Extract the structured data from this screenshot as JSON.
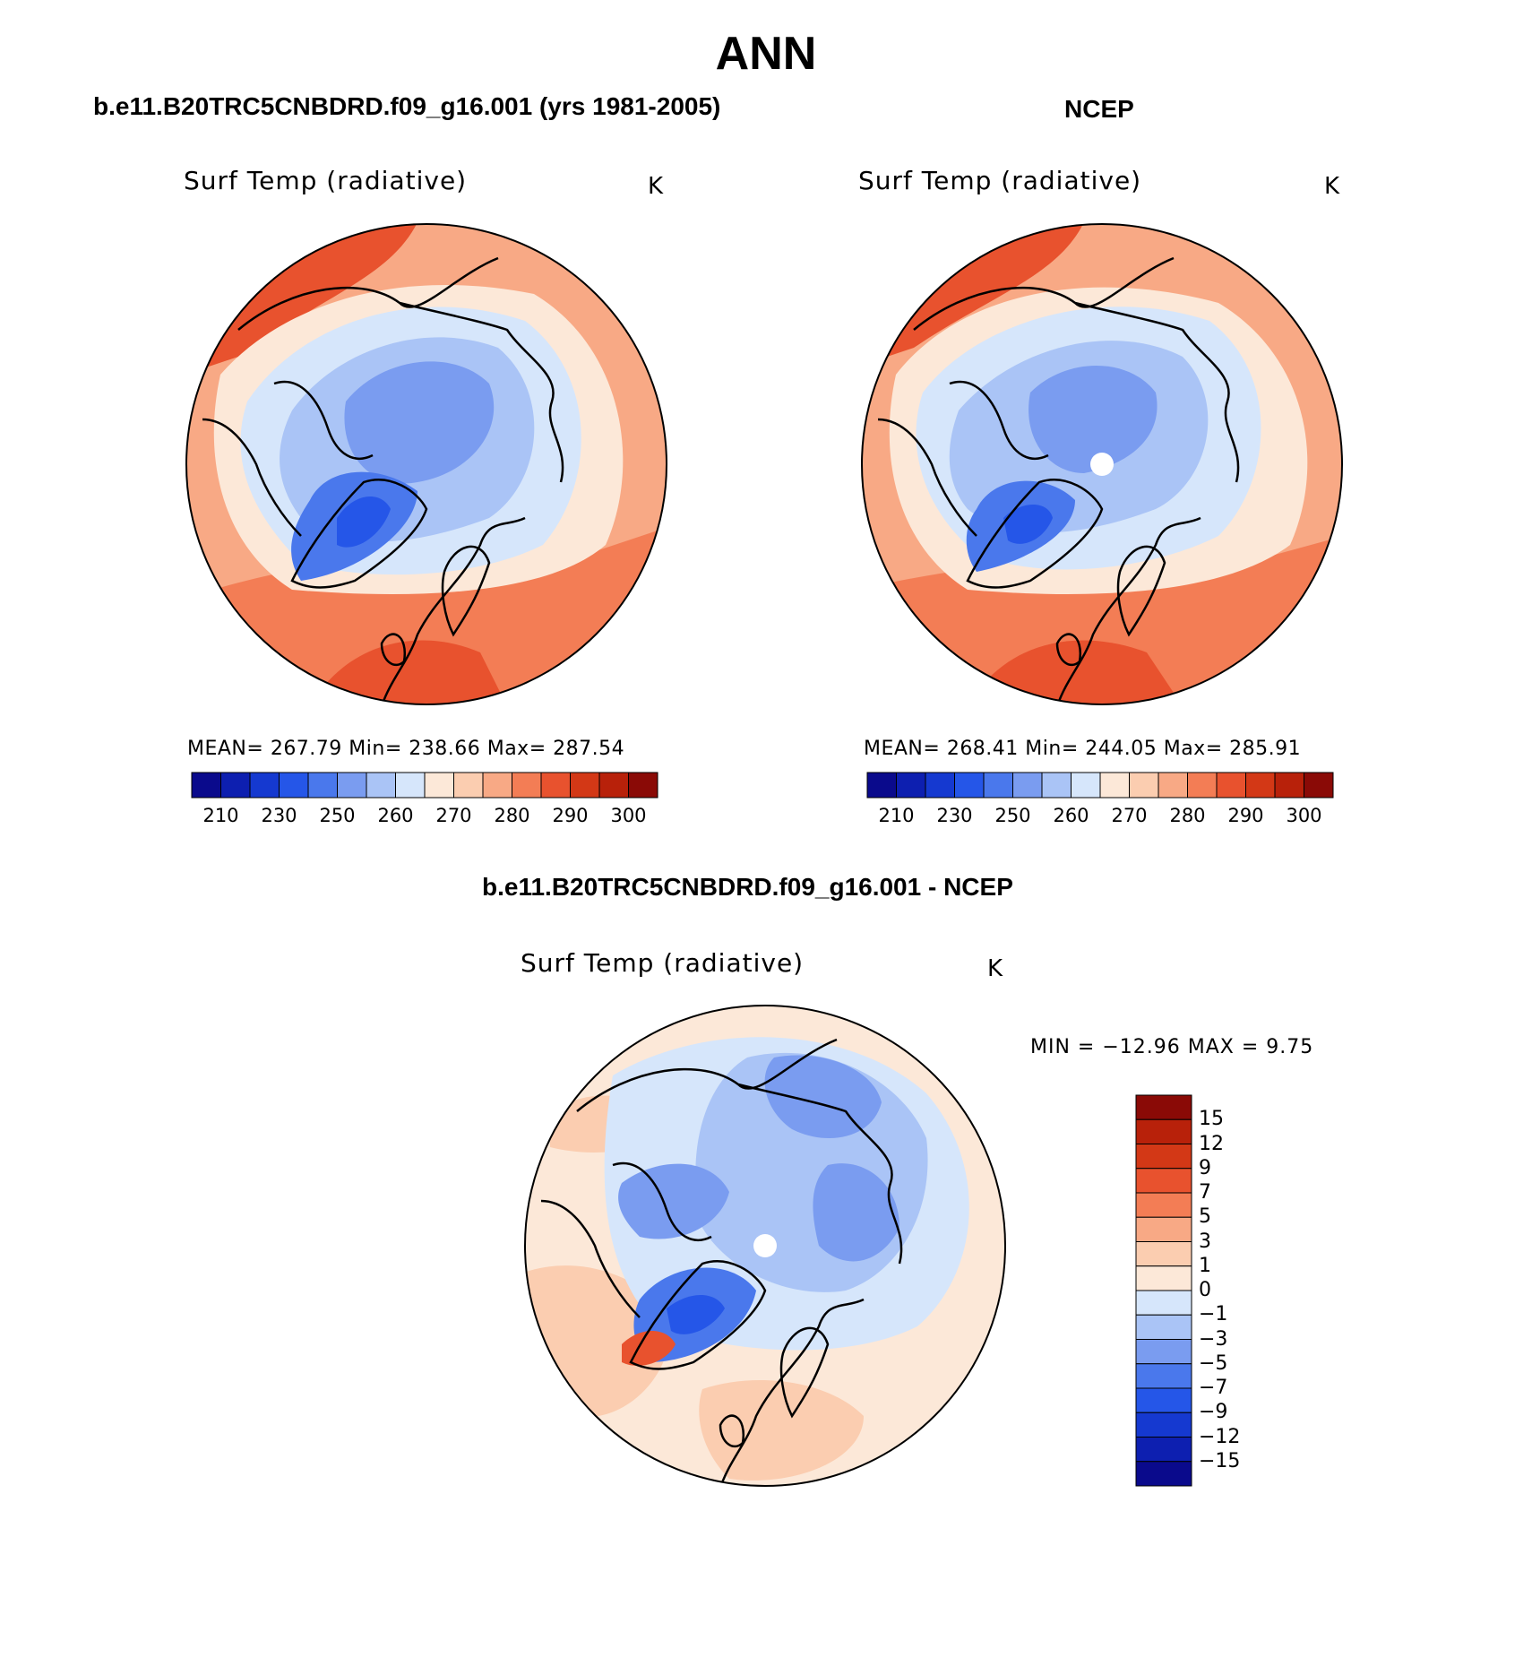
{
  "page_title": "ANN",
  "panels": [
    {
      "case_title": "b.e11.B20TRC5CNBDRD.f09_g16.001 (yrs 1981-2005)",
      "variable_label": "Surf Temp (radiative)",
      "unit": "K",
      "stats": {
        "mean": "267.79",
        "min": "238.66",
        "max": "287.54"
      },
      "stats_text": "MEAN= 267.79   Min= 238.66   Max= 287.54",
      "has_pole_hole": false
    },
    {
      "case_title": "NCEP",
      "variable_label": "Surf Temp (radiative)",
      "unit": "K",
      "stats": {
        "mean": "268.41",
        "min": "244.05",
        "max": "285.91"
      },
      "stats_text": "MEAN= 268.41   Min= 244.05   Max= 285.91",
      "has_pole_hole": true
    },
    {
      "case_title": "b.e11.B20TRC5CNBDRD.f09_g16.001 - NCEP",
      "variable_label": "Surf Temp (radiative)",
      "unit": "K",
      "stats": {
        "min": "-12.96",
        "max": "9.75"
      },
      "stats_text": "MIN = −12.96 MAX =    9.75",
      "has_pole_hole": true
    }
  ],
  "abs_colorbar": {
    "colors": [
      "#0a0a8c",
      "#0d1fb0",
      "#1539d0",
      "#2556e8",
      "#4a78ec",
      "#7a9cf0",
      "#aac4f6",
      "#d6e6fb",
      "#fce8d8",
      "#fbcdb0",
      "#f8a985",
      "#f37d55",
      "#e8522e",
      "#d33816",
      "#b8210a",
      "#8a0a06"
    ],
    "tick_labels": [
      "210",
      "230",
      "250",
      "260",
      "270",
      "280",
      "290",
      "300"
    ]
  },
  "diff_colorbar": {
    "colors": [
      "#8a0a06",
      "#b8210a",
      "#d33816",
      "#e8522e",
      "#f37d55",
      "#f8a985",
      "#fbcdb0",
      "#fce8d8",
      "#d6e6fb",
      "#aac4f6",
      "#7a9cf0",
      "#4a78ec",
      "#2556e8",
      "#1539d0",
      "#0d1fb0",
      "#0a0a8c"
    ],
    "tick_labels": [
      "15",
      "12",
      "9",
      "7",
      "5",
      "3",
      "1",
      "0",
      "−1",
      "−3",
      "−5",
      "−7",
      "−9",
      "−12",
      "−15"
    ]
  },
  "legend_colors": {
    "cold": "#2556e8",
    "neutral": "#fce8d8",
    "warm": "#e8522e"
  }
}
